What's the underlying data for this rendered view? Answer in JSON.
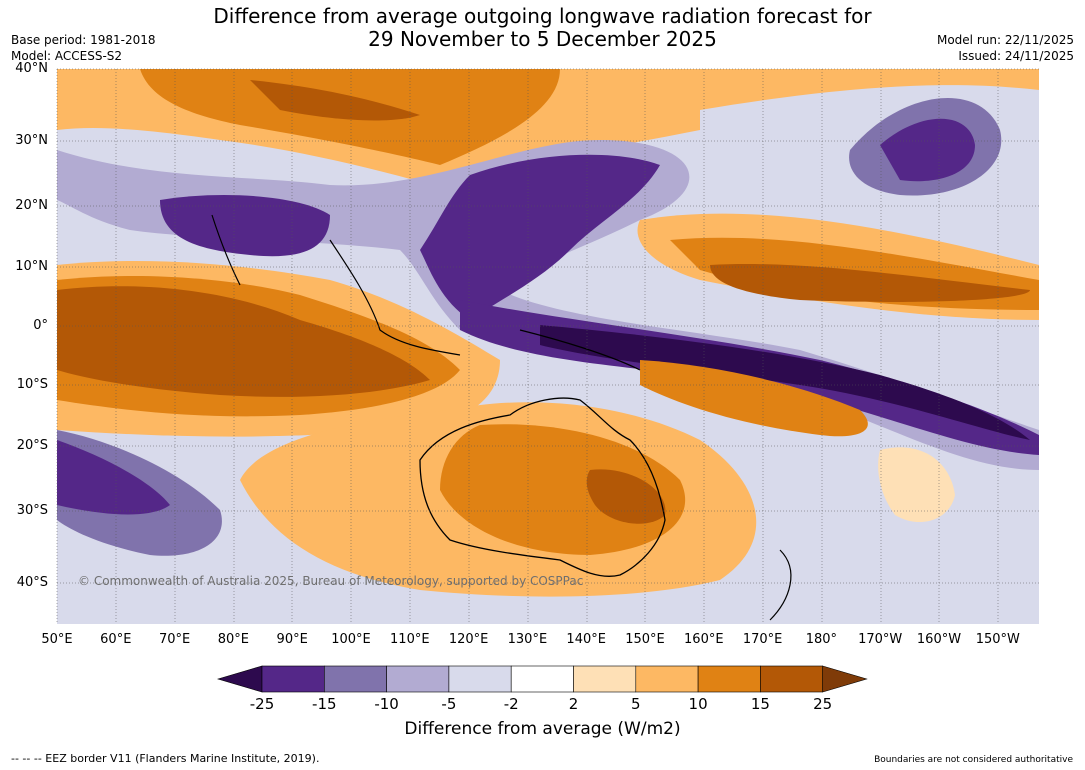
{
  "title_line1": "Difference from average outgoing longwave radiation forecast for",
  "title_line2": "29 November to 5 December 2025",
  "base_period": "Base period: 1981-2018",
  "model": "Model: ACCESS-S2",
  "model_run": "Model run: 22/11/2025",
  "issued": "Issued: 24/11/2025",
  "copyright": "© Commonwealth of Australia 2025, Bureau of Meteorology, supported by COSPPac",
  "lon_labels": [
    "50°E",
    "60°E",
    "70°E",
    "80°E",
    "90°E",
    "100°E",
    "110°E",
    "120°E",
    "130°E",
    "140°E",
    "150°E",
    "160°E",
    "170°E",
    "180°",
    "170°W",
    "160°W",
    "150°W"
  ],
  "lat_labels": [
    "40°N",
    "30°N",
    "20°N",
    "10°N",
    "0°",
    "10°S",
    "20°S",
    "30°S",
    "40°S"
  ],
  "colorbar": {
    "bounds": [
      "-25",
      "-15",
      "-10",
      "-5",
      "-2",
      "2",
      "5",
      "10",
      "15",
      "25"
    ],
    "colors": [
      "#2d0a4e",
      "#542788",
      "#8073ac",
      "#b2abd2",
      "#d8daeb",
      "#ffffff",
      "#fee0b6",
      "#fdb863",
      "#e08214",
      "#b35806",
      "#7f3b08"
    ],
    "title": "Difference from average (W/m2)"
  },
  "footer_left": "--  --  -- EEZ border V11 (Flanders Marine Institute, 2019).",
  "footer_right": "Boundaries are not considered authoritative"
}
